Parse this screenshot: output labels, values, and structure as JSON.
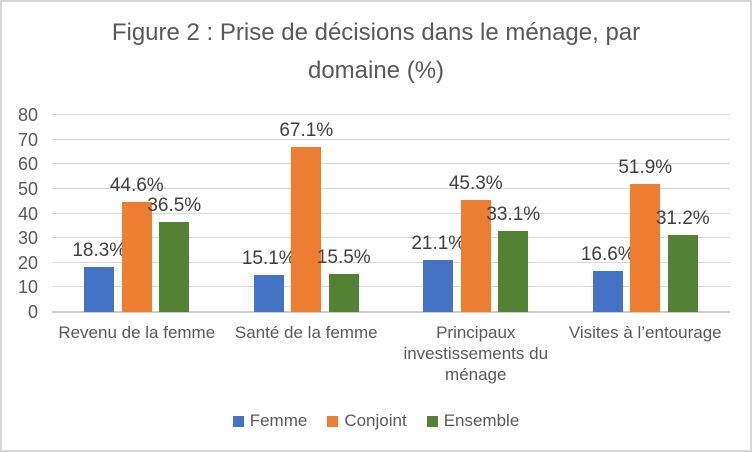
{
  "chart_data": {
    "type": "bar",
    "title": "Figure 2 : Prise de décisions dans le ménage, par domaine (%)",
    "categories": [
      "Revenu de la femme",
      "Santé de la femme",
      "Principaux investissements du ménage",
      "Visites à l’entourage"
    ],
    "series": [
      {
        "name": "Femme",
        "color": "#4472C4",
        "values": [
          18.3,
          15.1,
          21.1,
          16.6
        ]
      },
      {
        "name": "Conjoint",
        "color": "#ED7D31",
        "values": [
          44.6,
          67.1,
          45.3,
          51.9
        ]
      },
      {
        "name": "Ensemble",
        "color": "#548235",
        "values": [
          36.5,
          15.5,
          33.1,
          31.2
        ]
      }
    ],
    "data_label_suffix": "%",
    "ylim": [
      0,
      80
    ],
    "ytick_step": 10,
    "ytick_labels": [
      "0",
      "10",
      "20",
      "30",
      "40",
      "50",
      "60",
      "70",
      "80"
    ],
    "grid": true,
    "legend_position": "bottom",
    "colors": {
      "grid": "#D9D9D9",
      "axis_line": "#D1CFCF",
      "title_text": "#595959",
      "axis_text": "#595959",
      "data_label_text": "#404040",
      "frame_border": "#D6D6D6"
    }
  }
}
